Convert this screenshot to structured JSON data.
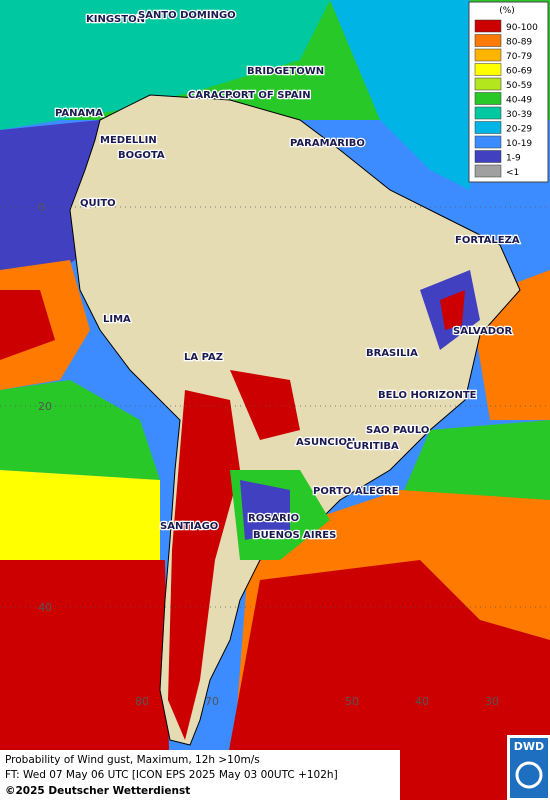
{
  "map": {
    "legend": {
      "title": "(%)",
      "items": [
        {
          "label": "90-100",
          "color": "#cc0000"
        },
        {
          "label": "80-89",
          "color": "#ff7a00"
        },
        {
          "label": "70-79",
          "color": "#ffb400"
        },
        {
          "label": "60-69",
          "color": "#ffff00"
        },
        {
          "label": "50-59",
          "color": "#b4e61e"
        },
        {
          "label": "40-49",
          "color": "#28c828"
        },
        {
          "label": "30-39",
          "color": "#00c8a0"
        },
        {
          "label": "20-29",
          "color": "#00b4e6"
        },
        {
          "label": "10-19",
          "color": "#3c8cff"
        },
        {
          "label": "1-9",
          "color": "#4040c0"
        },
        {
          "label": "<1",
          "color": "#a0a0a0"
        }
      ]
    },
    "cities": [
      "KINGSTON",
      "SANTO DOMINGO",
      "BRIDGETOWN",
      "CARACAS",
      "PORT OF SPAIN",
      "PANAMA",
      "MEDELLIN",
      "BOGOTA",
      "PARAMARIBO",
      "QUITO",
      "FORTALEZA",
      "LIMA",
      "SALVADOR",
      "LA PAZ",
      "BRASILIA",
      "BELO HORIZONTE",
      "SAO PAULO",
      "ASUNCION",
      "CURITIBA",
      "PORTO ALEGRE",
      "ROSARIO",
      "SANTIAGO",
      "BUENOS AIRES"
    ],
    "lat_labels": [
      "0",
      "20",
      "40"
    ],
    "lon_labels": [
      "80",
      "70",
      "50",
      "40",
      "30"
    ],
    "footer": [
      "Probability of Wind gust, Maximum, 12h >10m/s",
      "FT: Wed 07 May 06 UTC [ICON EPS 2025 May 03 00UTC +102h]",
      "©2025 Deutscher Wetterdienst"
    ],
    "logo": "DWD"
  }
}
